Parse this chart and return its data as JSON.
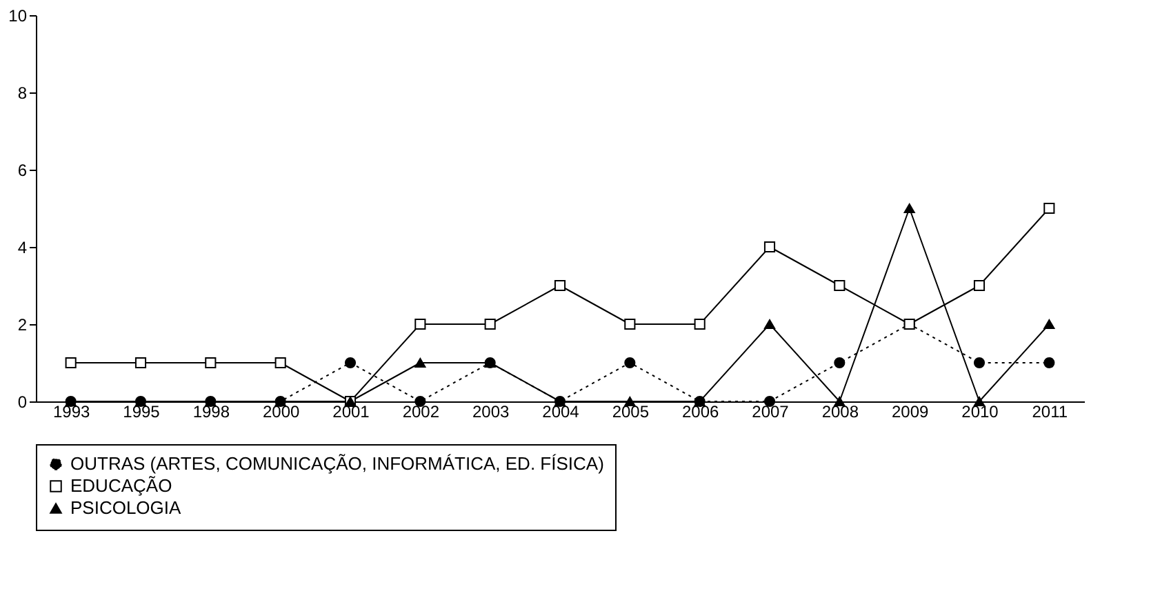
{
  "chart_data": {
    "type": "line",
    "categories": [
      "1993",
      "1995",
      "1998",
      "2000",
      "2001",
      "2002",
      "2003",
      "2004",
      "2005",
      "2006",
      "2007",
      "2008",
      "2009",
      "2010",
      "2011"
    ],
    "ylim": [
      0,
      10
    ],
    "yticks": [
      0,
      2,
      4,
      6,
      8,
      10
    ],
    "grid": false,
    "legend": "bottom",
    "series": [
      {
        "name": "OUTRAS (ARTES, COMUNICAÇÃO, INFORMÁTICA, ED. FÍSICA)",
        "color": "#000000",
        "marker": "circle",
        "line_style": "dotted",
        "values": [
          0,
          0,
          0,
          0,
          1,
          0,
          1,
          0,
          1,
          0,
          0,
          1,
          2,
          1,
          1
        ]
      },
      {
        "name": "EDUCAÇÃO",
        "color": "#000000",
        "marker": "square",
        "line_style": "solid",
        "values": [
          1,
          1,
          1,
          1,
          0,
          2,
          2,
          3,
          2,
          2,
          4,
          3,
          2,
          3,
          5
        ]
      },
      {
        "name": "PSICOLOGIA",
        "color": "#000000",
        "marker": "triangle",
        "line_style": "solid",
        "values": [
          0,
          0,
          0,
          0,
          0,
          1,
          1,
          0,
          0,
          0,
          2,
          0,
          5,
          0,
          2
        ]
      }
    ]
  }
}
